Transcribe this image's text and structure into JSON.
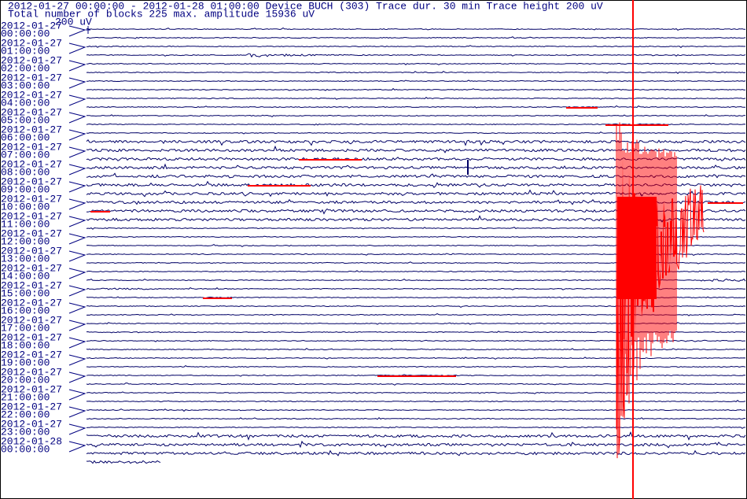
{
  "header": {
    "line1": "2012-01-27 00:00:00 - 2012-01-28 01:00:00  Device  BUCH (303)  Trace dur. 30 min  Trace height 200 uV",
    "line2": "Total number of blocks 225 max. amplitude 15936 uV",
    "scale": "200 uV"
  },
  "rows": [
    {
      "date": "2012-01-27",
      "time": "00:00:00"
    },
    {
      "date": "2012-01-27",
      "time": "01:00:00"
    },
    {
      "date": "2012-01-27",
      "time": "02:00:00"
    },
    {
      "date": "2012-01-27",
      "time": "03:00:00"
    },
    {
      "date": "2012-01-27",
      "time": "04:00:00"
    },
    {
      "date": "2012-01-27",
      "time": "05:00:00"
    },
    {
      "date": "2012-01-27",
      "time": "06:00:00"
    },
    {
      "date": "2012-01-27",
      "time": "07:00:00"
    },
    {
      "date": "2012-01-27",
      "time": "08:00:00"
    },
    {
      "date": "2012-01-27",
      "time": "09:00:00"
    },
    {
      "date": "2012-01-27",
      "time": "10:00:00"
    },
    {
      "date": "2012-01-27",
      "time": "11:00:00"
    },
    {
      "date": "2012-01-27",
      "time": "12:00:00"
    },
    {
      "date": "2012-01-27",
      "time": "13:00:00"
    },
    {
      "date": "2012-01-27",
      "time": "14:00:00"
    },
    {
      "date": "2012-01-27",
      "time": "15:00:00"
    },
    {
      "date": "2012-01-27",
      "time": "16:00:00"
    },
    {
      "date": "2012-01-27",
      "time": "17:00:00"
    },
    {
      "date": "2012-01-27",
      "time": "18:00:00"
    },
    {
      "date": "2012-01-27",
      "time": "19:00:00"
    },
    {
      "date": "2012-01-27",
      "time": "20:00:00"
    },
    {
      "date": "2012-01-27",
      "time": "21:00:00"
    },
    {
      "date": "2012-01-27",
      "time": "22:00:00"
    },
    {
      "date": "2012-01-27",
      "time": "23:00:00"
    },
    {
      "date": "2012-01-28",
      "time": "00:00:00"
    }
  ]
}
